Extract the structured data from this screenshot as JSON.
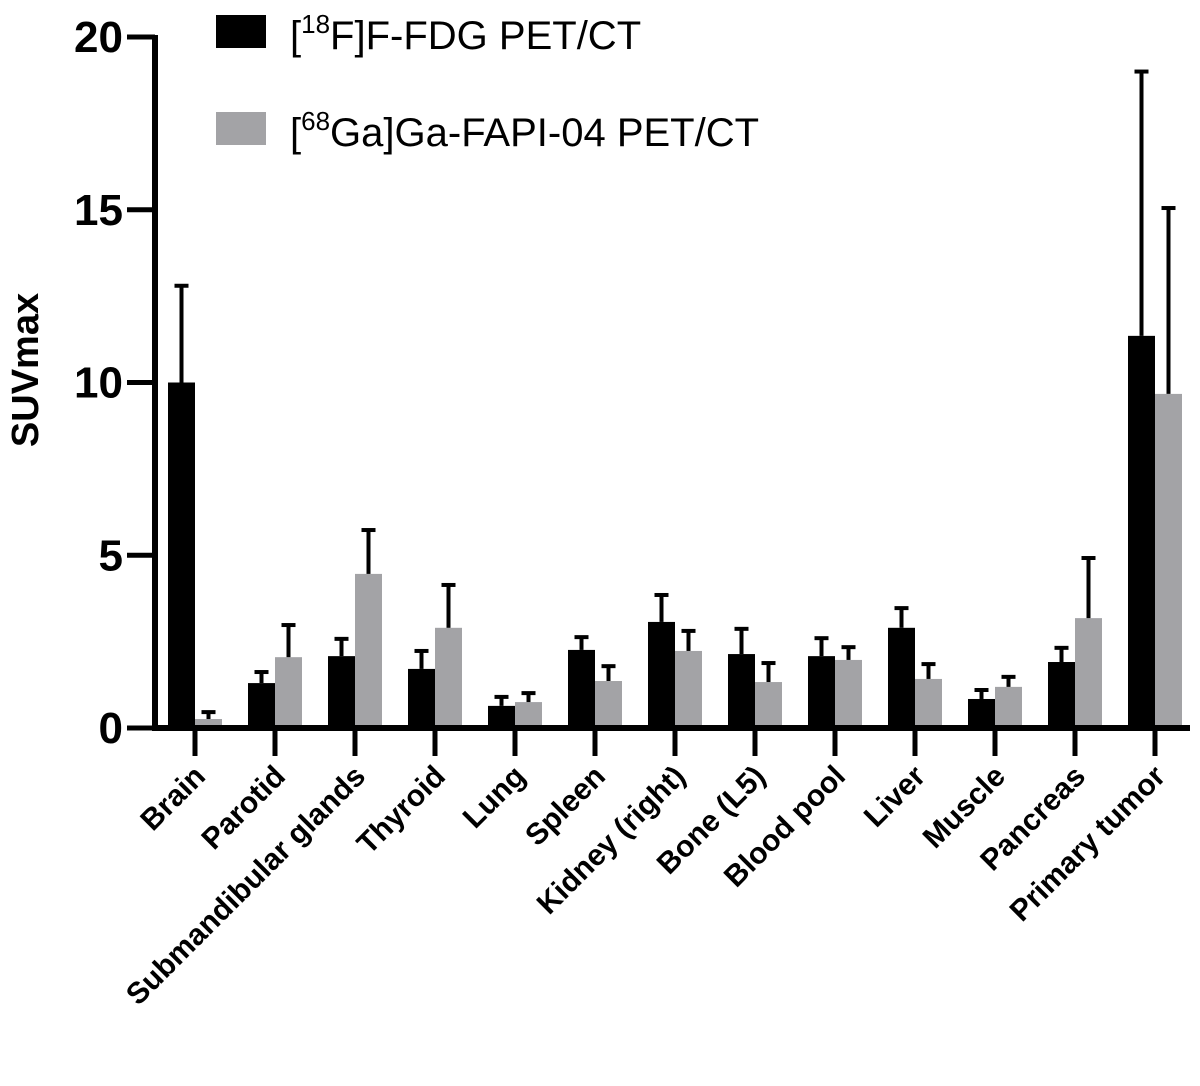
{
  "chart_data": {
    "type": "bar",
    "ylabel": "SUVmax",
    "xlabel": "",
    "ylim": [
      0,
      20
    ],
    "yticks": [
      0,
      5,
      10,
      15,
      20
    ],
    "grid": false,
    "legend_placement": "top",
    "categories": [
      "Brain",
      "Parotid",
      "Submandibular glands",
      "Thyroid",
      "Lung",
      "Spleen",
      "Kidney (right)",
      "Bone (L5)",
      "Blood pool",
      "Liver",
      "Muscle",
      "Pancreas",
      "Primary tumor"
    ],
    "series": [
      {
        "name_prefix": "[",
        "name_sup": "18",
        "name_suffix": "F]F-FDG PET/CT",
        "name": "[18F]F-FDG PET/CT",
        "color": "#000000",
        "values": [
          10.0,
          1.3,
          2.08,
          1.71,
          0.64,
          2.26,
          3.07,
          2.14,
          2.08,
          2.9,
          0.84,
          1.91,
          11.35
        ],
        "error_upper": [
          12.8,
          1.62,
          2.58,
          2.23,
          0.9,
          2.63,
          3.85,
          2.87,
          2.6,
          3.47,
          1.1,
          2.32,
          19.0
        ]
      },
      {
        "name_prefix": "[",
        "name_sup": "68",
        "name_suffix": "Ga]Ga-FAPI-04 PET/CT",
        "name": "[68Ga]Ga-FAPI-04 PET/CT",
        "color": "#a3a3a6",
        "values": [
          0.26,
          2.05,
          4.46,
          2.9,
          0.75,
          1.36,
          2.23,
          1.33,
          1.97,
          1.42,
          1.19,
          3.18,
          9.67
        ],
        "error_upper": [
          0.46,
          2.98,
          5.73,
          4.14,
          1.01,
          1.79,
          2.81,
          1.88,
          2.34,
          1.85,
          1.48,
          4.92,
          15.05
        ]
      }
    ]
  }
}
